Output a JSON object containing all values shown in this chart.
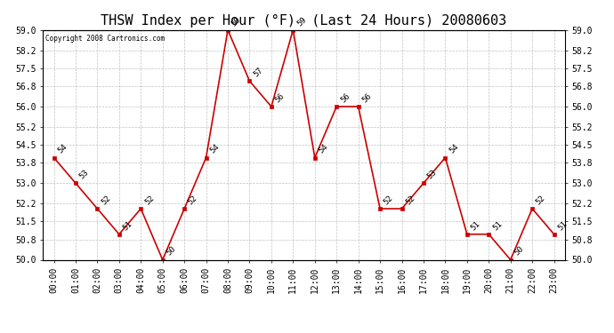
{
  "title": "THSW Index per Hour (°F)  (Last 24 Hours) 20080603",
  "copyright": "Copyright 2008 Cartronics.com",
  "hours": [
    "00:00",
    "01:00",
    "02:00",
    "03:00",
    "04:00",
    "05:00",
    "06:00",
    "07:00",
    "08:00",
    "09:00",
    "10:00",
    "11:00",
    "12:00",
    "13:00",
    "14:00",
    "15:00",
    "16:00",
    "17:00",
    "18:00",
    "19:00",
    "20:00",
    "21:00",
    "22:00",
    "23:00"
  ],
  "values": [
    54,
    53,
    52,
    51,
    52,
    50,
    52,
    54,
    59,
    57,
    56,
    59,
    54,
    56,
    56,
    52,
    52,
    53,
    54,
    51,
    51,
    50,
    52,
    51
  ],
  "line_color": "#cc0000",
  "marker_color": "#cc0000",
  "bg_color": "#ffffff",
  "grid_color": "#bbbbbb",
  "ylim_min": 50.0,
  "ylim_max": 59.0,
  "yticks": [
    50.0,
    50.8,
    51.5,
    52.2,
    53.0,
    53.8,
    54.5,
    55.2,
    56.0,
    56.8,
    57.5,
    58.2,
    59.0
  ],
  "title_fontsize": 11,
  "label_fontsize": 7,
  "annot_fontsize": 6.5
}
